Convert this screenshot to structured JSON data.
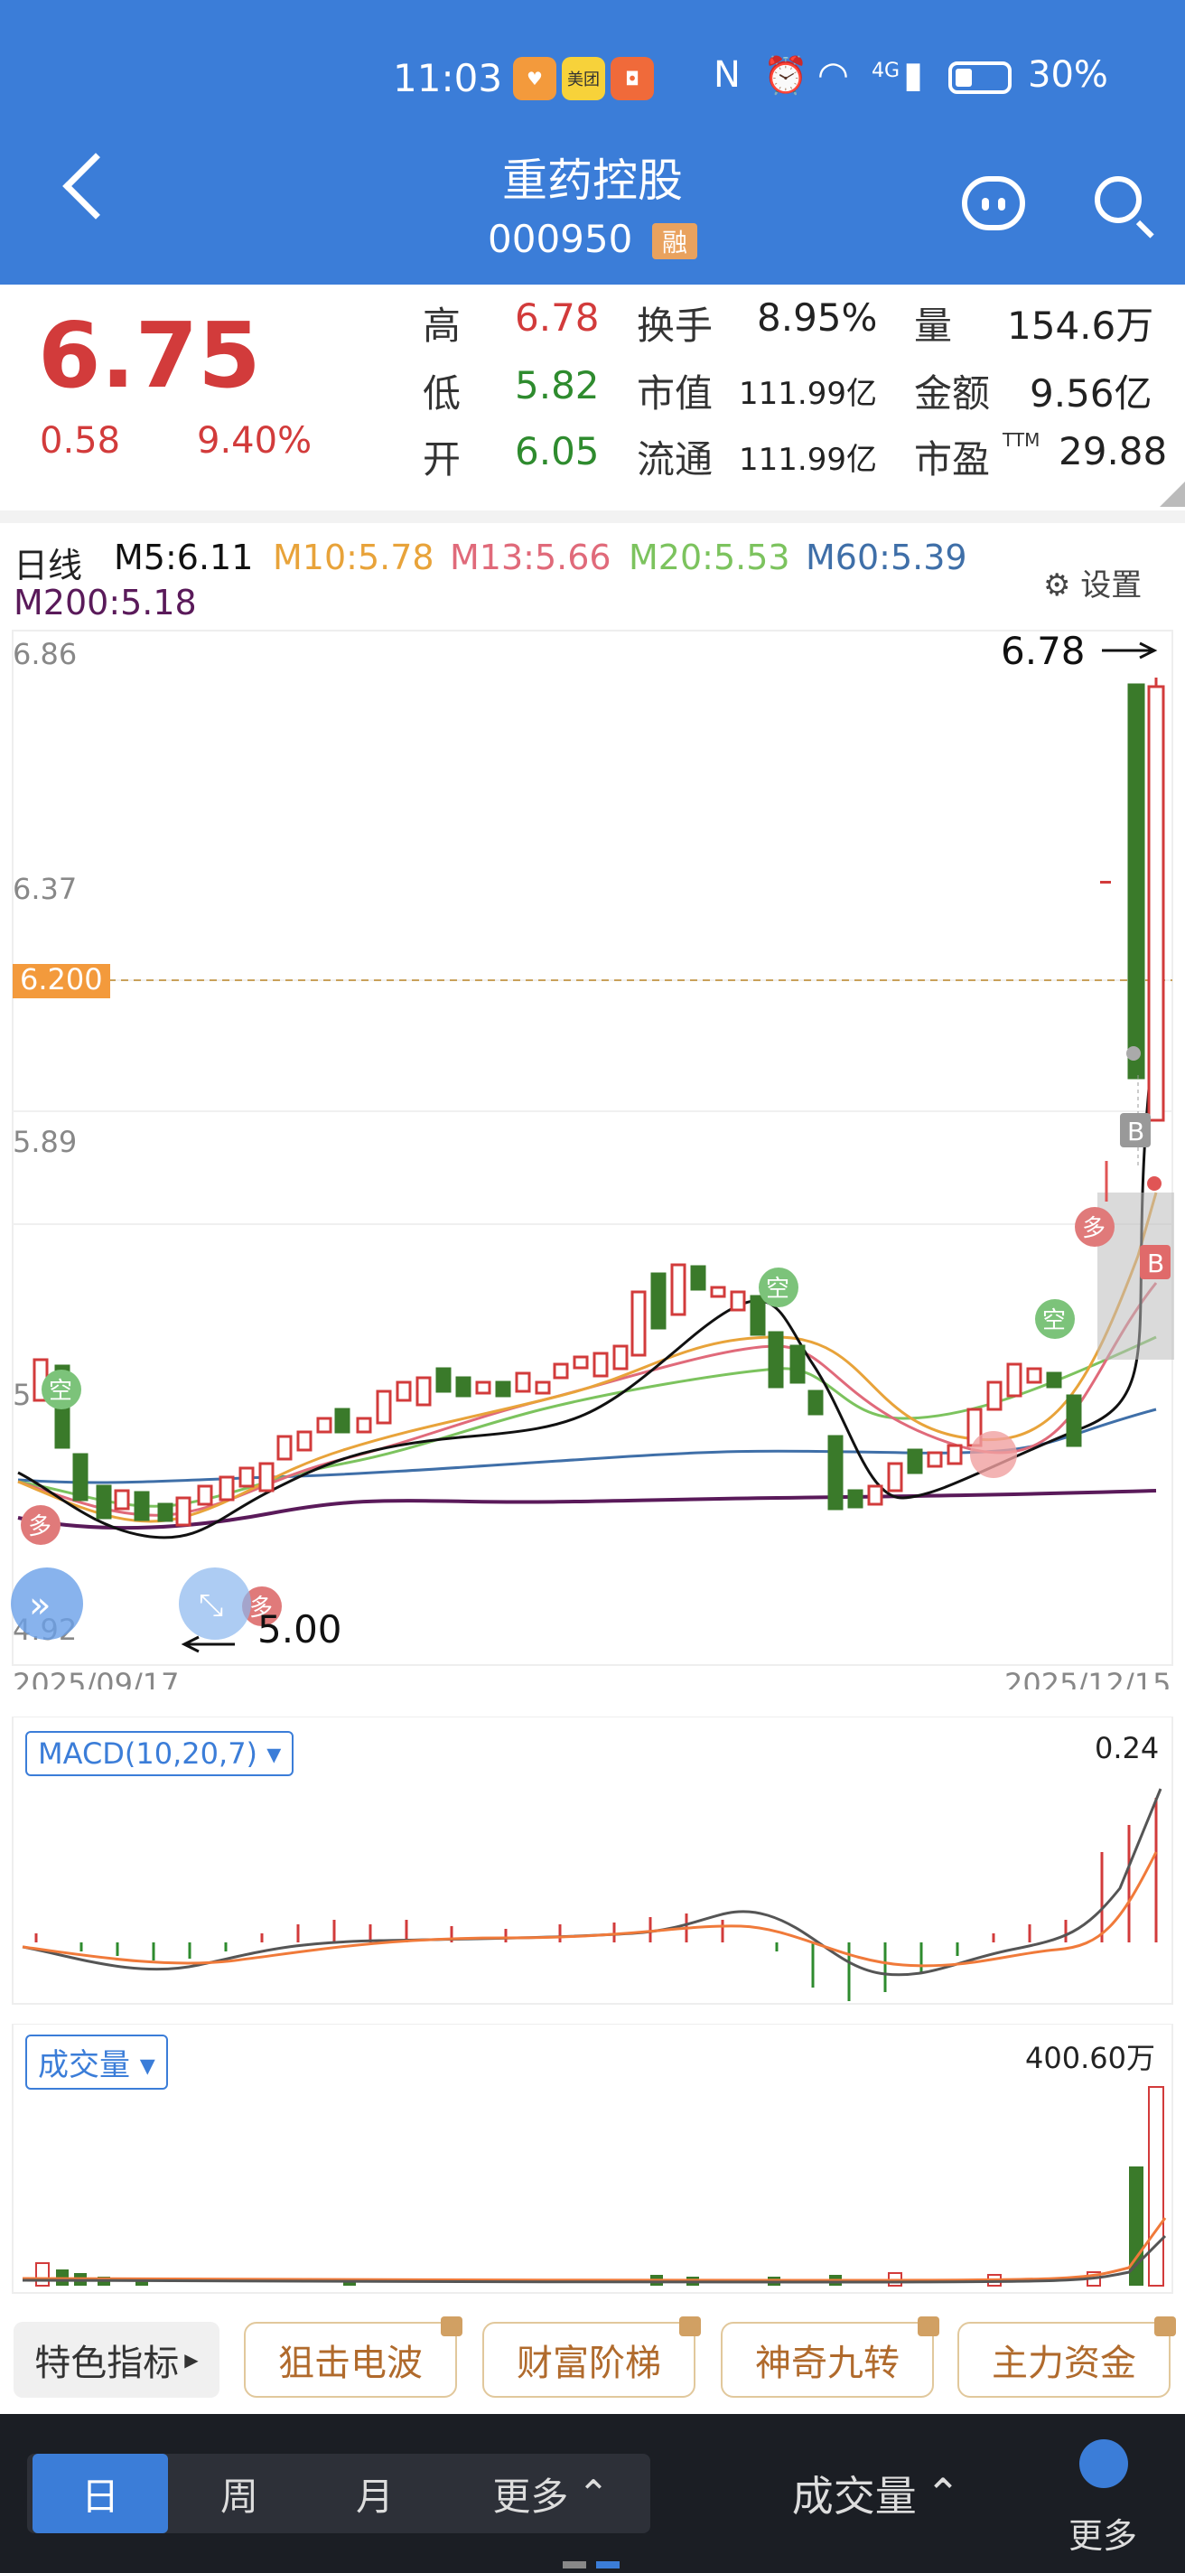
{
  "status": {
    "time": "11:03",
    "network": "4G",
    "battery": "30%",
    "meituan": "美团"
  },
  "header": {
    "title": "重药控股",
    "code": "000950",
    "badge": "融"
  },
  "quote": {
    "price": "6.75",
    "change": "0.58",
    "change_pct": "9.40%",
    "high_label": "高",
    "high": "6.78",
    "low_label": "低",
    "low": "5.82",
    "open_label": "开",
    "open": "6.05",
    "turnover_label": "换手",
    "turnover": "8.95%",
    "mktcap_label": "市值",
    "mktcap": "111.99亿",
    "float_label": "流通",
    "float": "111.99亿",
    "volume_label": "量",
    "volume": "154.6万",
    "amount_label": "金额",
    "amount": "9.56亿",
    "pe_label": "市盈",
    "pe_sup": "TTM",
    "pe": "29.88"
  },
  "ma_bar": {
    "period": "日线",
    "m5": "M5:6.11",
    "m10": "M10:5.78",
    "m13": "M13:5.66",
    "m20": "M20:5.53",
    "m60": "M60:5.39",
    "m200": "M200:5.18",
    "settings": "设置"
  },
  "kline": {
    "y_ticks": [
      "6.86",
      "6.37",
      "5.89",
      "5",
      "4.92"
    ],
    "ref_price": "6.200",
    "max_label": "6.78",
    "min_label": "5.00",
    "date_start": "2025/09/17",
    "date_end": "2025/12/15",
    "signal_bull": "多",
    "signal_bear": "空",
    "marker_b": "B"
  },
  "macd": {
    "label": "MACD(10,20,7)",
    "value": "0.24"
  },
  "volume_panel": {
    "label": "成交量",
    "value": "400.60万"
  },
  "indicators": {
    "featured": "特色指标",
    "items": [
      "狙击电波",
      "财富阶梯",
      "神奇九转",
      "主力资金"
    ]
  },
  "bottom_nav": {
    "tabs": [
      "日",
      "周",
      "月",
      "更多"
    ],
    "sub": "成交量",
    "more": "更多"
  },
  "colors": {
    "header": "#3b7dd8",
    "up": "#d23b3b",
    "down": "#2e8b2e",
    "ma5": "#111111",
    "ma10": "#e8a33a",
    "ma13": "#e06a7a",
    "ma20": "#7cc35e",
    "ma60": "#3f6fa8",
    "ma200": "#5a1a5a"
  }
}
